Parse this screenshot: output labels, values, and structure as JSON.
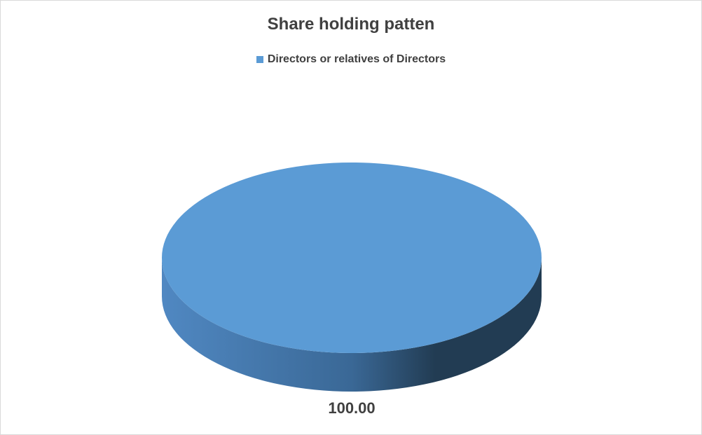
{
  "chart_data": {
    "type": "pie",
    "title": "Share holding patten",
    "categories": [
      "Directors or relatives of Directors"
    ],
    "values": [
      100.0
    ],
    "data_labels": [
      "100.00"
    ],
    "legend_placement": "top",
    "style": "3d",
    "colors": {
      "slice": "#5b9bd5",
      "side_light": "#5088c2",
      "side_dark": "#223c53"
    }
  }
}
